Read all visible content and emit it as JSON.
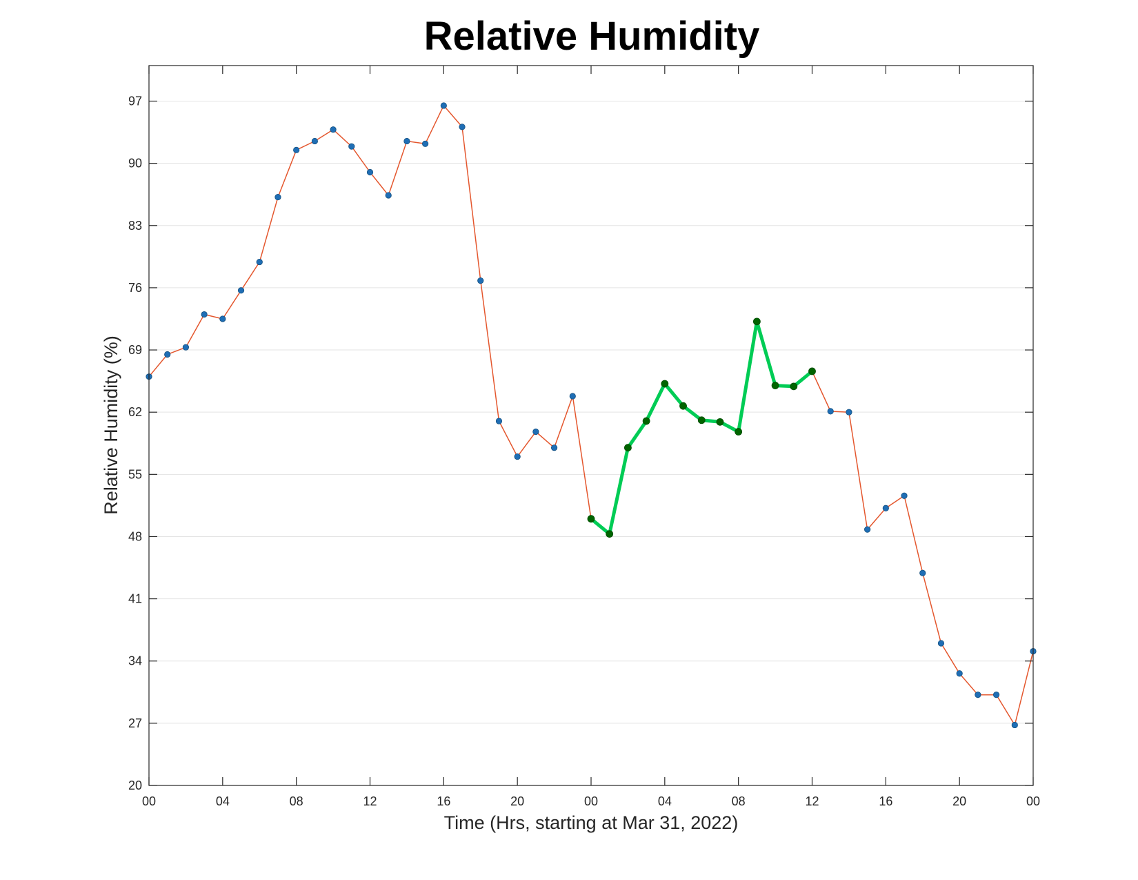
{
  "chart_data": {
    "type": "line",
    "title": "Relative Humidity",
    "xlabel": "Time (Hrs, starting at Mar 31, 2022)",
    "ylabel": "Relative Humidity (%)",
    "ylim": [
      20,
      101
    ],
    "xlim": [
      0,
      48
    ],
    "yticks": [
      20,
      27,
      34,
      41,
      48,
      55,
      62,
      69,
      76,
      83,
      90,
      97
    ],
    "xtick_positions": [
      0,
      4,
      8,
      12,
      16,
      20,
      24,
      28,
      32,
      36,
      40,
      44,
      48
    ],
    "xtick_labels": [
      "00",
      "04",
      "08",
      "12",
      "16",
      "20",
      "00",
      "04",
      "08",
      "12",
      "16",
      "20",
      "00"
    ],
    "grid": "horizontal",
    "colors": {
      "line": "#e4572e",
      "marker": "#1f6eb5",
      "highlight_line": "#00cc55",
      "highlight_marker": "#006400"
    },
    "series": [
      {
        "x": [
          0,
          1,
          2,
          3,
          4,
          5,
          6,
          7,
          8,
          9,
          10,
          11,
          12,
          13,
          14,
          15,
          16,
          17,
          18,
          19,
          20,
          21,
          22,
          23,
          24,
          25,
          26,
          27,
          28,
          29,
          30,
          31,
          32,
          33,
          34,
          35,
          36,
          37,
          38,
          39,
          40,
          41,
          42,
          43,
          44,
          45,
          46,
          47,
          48
        ],
        "values": [
          66,
          68.5,
          69.3,
          73,
          72.5,
          75.7,
          78.9,
          86.2,
          91.5,
          92.5,
          93.8,
          91.9,
          89,
          86.4,
          92.5,
          92.2,
          96.5,
          94.1,
          76.8,
          61,
          57,
          59.8,
          58,
          63.8,
          50,
          48.3,
          58,
          61,
          65.2,
          62.7,
          61.1,
          60.9,
          59.8,
          72.2,
          65,
          64.9,
          66.6,
          62.1,
          62,
          48.8,
          51.2,
          52.6,
          43.9,
          36,
          32.6,
          30.2,
          30.2,
          26.8,
          35.1
        ]
      }
    ],
    "highlight_range": [
      24,
      36
    ]
  }
}
